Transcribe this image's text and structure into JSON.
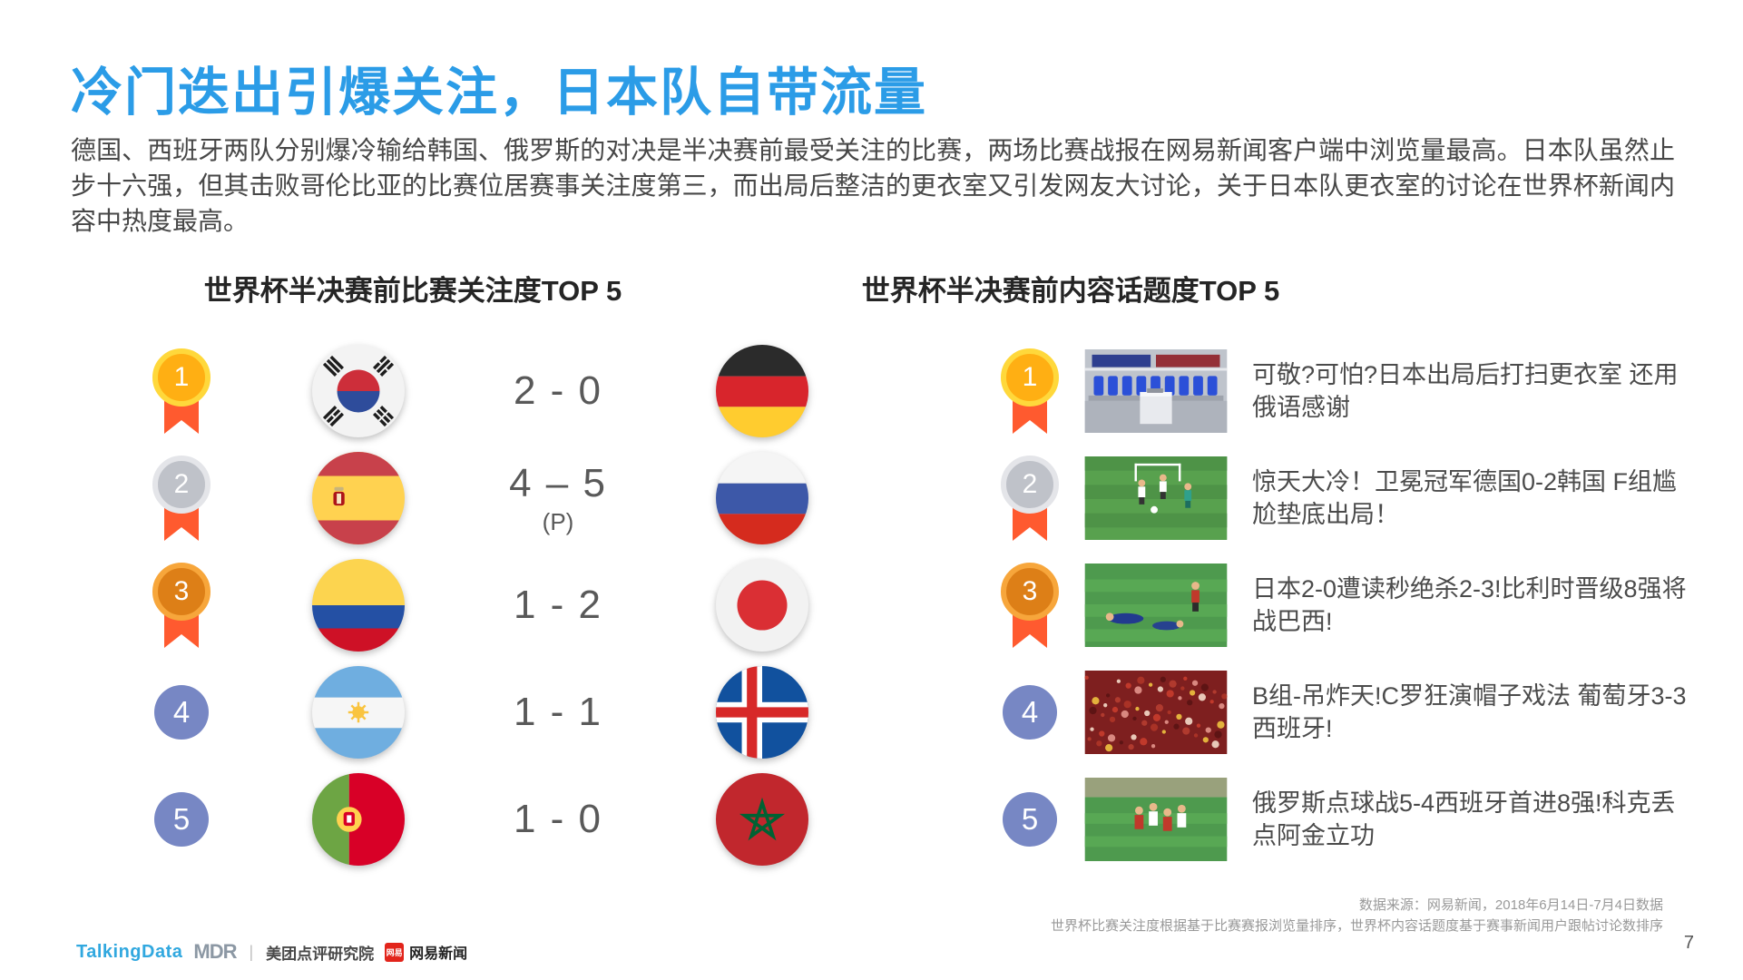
{
  "title": "冷门迭出引爆关注，日本队自带流量",
  "intro": "德国、西班牙两队分别爆冷输给韩国、俄罗斯的对决是半决赛前最受关注的比赛，两场比赛战报在网易新闻客户端中浏览量最高。日本队虽然止步十六强，但其击败哥伦比亚的比赛位居赛事关注度第三，而出局后整洁的更衣室又引发网友大讨论，关于日本队更衣室的讨论在世界杯新闻内容中热度最高。",
  "left_panel": {
    "heading": "世界杯半决赛前比赛关注度TOP 5",
    "rows": [
      {
        "rank": "1",
        "medal_style": "gold",
        "home_flag": "south-korea",
        "score": "2 - 0",
        "away_flag": "germany"
      },
      {
        "rank": "2",
        "medal_style": "silver",
        "home_flag": "spain",
        "score": "4 – 5",
        "score_note": "(P)",
        "away_flag": "russia"
      },
      {
        "rank": "3",
        "medal_style": "bronze",
        "home_flag": "colombia",
        "score": "1 - 2",
        "away_flag": "japan"
      },
      {
        "rank": "4",
        "medal_style": "plain",
        "home_flag": "argentina",
        "score": "1 - 1",
        "away_flag": "iceland"
      },
      {
        "rank": "5",
        "medal_style": "plain",
        "home_flag": "portugal",
        "score": "1 - 0",
        "away_flag": "morocco"
      }
    ]
  },
  "right_panel": {
    "heading": "世界杯半决赛前内容话题度TOP 5",
    "rows": [
      {
        "rank": "1",
        "medal_style": "gold",
        "thumbnail": "locker-room",
        "headline": "可敬?可怕?日本出局后打扫更衣室 还用俄语感谢"
      },
      {
        "rank": "2",
        "medal_style": "silver",
        "thumbnail": "match-goal",
        "headline": "惊天大冷！卫冕冠军德国0-2韩国 F组尴尬垫底出局！"
      },
      {
        "rank": "3",
        "medal_style": "bronze",
        "thumbnail": "players-pitch",
        "headline": "日本2-0遭读秒绝杀2-3!比利时晋级8强将战巴西!"
      },
      {
        "rank": "4",
        "medal_style": "plain",
        "thumbnail": "crowd",
        "headline": "B组-吊炸天!C罗狂演帽子戏法 葡萄牙3-3西班牙!"
      },
      {
        "rank": "5",
        "medal_style": "plain",
        "thumbnail": "celebration",
        "headline": "俄罗斯点球战5-4西班牙首进8强!科克丢点阿金立功"
      }
    ]
  },
  "footer": {
    "source_line1": "数据来源：网易新闻，2018年6月14日-7月4日数据",
    "source_line2": "世界杯比赛关注度根据基于比赛赛报浏览量排序，世界杯内容话题度基于赛事新闻用户跟帖讨论数排序",
    "page_number": "7",
    "logos": {
      "talkingdata": "TalkingData",
      "mdr": "MDR",
      "meituan": "美团点评研究院",
      "netease_badge": "网易",
      "netease": "网易新闻"
    }
  },
  "colors": {
    "accent_blue": "#2B9CE7",
    "medal_gold": "#FFAF13",
    "medal_silver": "#BFC2C9",
    "medal_bronze": "#DD7F17",
    "ribbon_orange": "#FF5A2F",
    "rank_circle_blue": "#7787C4",
    "body_text": "#474747"
  }
}
